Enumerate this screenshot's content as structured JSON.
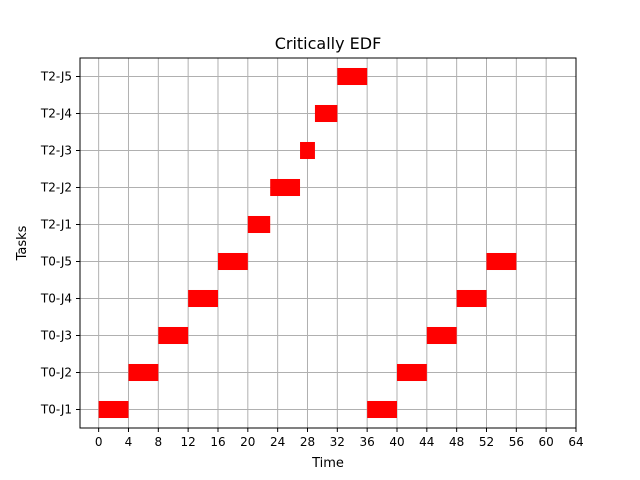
{
  "chart_data": {
    "type": "gantt",
    "title": "Critically EDF",
    "xlabel": "Time",
    "ylabel": "Tasks",
    "xlim": [
      -2.5,
      64
    ],
    "ylim": [
      -0.5,
      9.5
    ],
    "x_ticks": [
      0,
      4,
      8,
      12,
      16,
      20,
      24,
      28,
      32,
      36,
      40,
      44,
      48,
      52,
      56,
      60,
      64
    ],
    "categories": [
      "T0-J1",
      "T0-J2",
      "T0-J3",
      "T0-J4",
      "T0-J5",
      "T2-J1",
      "T2-J2",
      "T2-J3",
      "T2-J4",
      "T2-J5"
    ],
    "bars": [
      {
        "task": "T0-J1",
        "start": 0,
        "end": 4
      },
      {
        "task": "T0-J2",
        "start": 4,
        "end": 8
      },
      {
        "task": "T0-J3",
        "start": 8,
        "end": 12
      },
      {
        "task": "T0-J4",
        "start": 12,
        "end": 16
      },
      {
        "task": "T0-J5",
        "start": 16,
        "end": 20
      },
      {
        "task": "T2-J1",
        "start": 20,
        "end": 23
      },
      {
        "task": "T2-J2",
        "start": 23,
        "end": 27
      },
      {
        "task": "T2-J3",
        "start": 27,
        "end": 29
      },
      {
        "task": "T2-J4",
        "start": 29,
        "end": 32
      },
      {
        "task": "T2-J5",
        "start": 32,
        "end": 36
      },
      {
        "task": "T0-J1",
        "start": 36,
        "end": 40
      },
      {
        "task": "T0-J2",
        "start": 40,
        "end": 44
      },
      {
        "task": "T0-J3",
        "start": 44,
        "end": 48
      },
      {
        "task": "T0-J4",
        "start": 48,
        "end": 52
      },
      {
        "task": "T0-J5",
        "start": 52,
        "end": 56
      }
    ],
    "bar_color": "#ff0000",
    "grid": true,
    "grid_color": "#b0b0b0",
    "legend": "none"
  }
}
